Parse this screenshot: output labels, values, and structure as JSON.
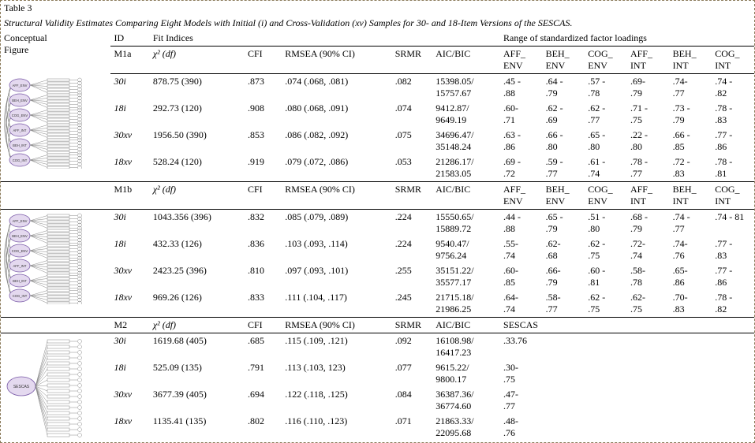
{
  "table_label": "Table 3",
  "caption": "Structural Validity Estimates Comparing Eight Models with Initial (i) and Cross-Validation (xv) Samples for 30- and 18-Item Versions of the SESCAS.",
  "cols": {
    "conceptual": "Conceptual Figure",
    "id": "ID",
    "fit": "Fit Indices",
    "range": "Range of standardized factor loadings",
    "chi": "χ² (df)",
    "cfi": "CFI",
    "rmsea": "RMSEA (90% CI)",
    "srmr": "SRMR",
    "aicbic": "AIC/BIC",
    "affenv": "AFF_ ENV",
    "behenv": "BEH_ ENV",
    "cogenv": "COG_ ENV",
    "affint": "AFF_ INT",
    "behint": "BEH_ INT",
    "cogint": "COG_ INT",
    "sescas": "SESCAS"
  },
  "models": {
    "m1a": {
      "id": "M1a",
      "figure_nodes": [
        "AFF_ENV",
        "BEH_ENV",
        "COG_ENV",
        "AFF_INT",
        "BEH_INT",
        "COG_INT"
      ],
      "rows": [
        {
          "id": "30i",
          "chi": "878.75 (390)",
          "cfi": ".873",
          "rmsea": ".074 (.068, .081)",
          "srmr": ".082",
          "aicbic": "15398.05/ 15757.67",
          "affenv": ".45 - .88",
          "behenv": ".64 - .79",
          "cogenv": ".57 - .78",
          "affint": ".69- .79",
          "behint": ".74- .77",
          "cogint": ".74 - .82"
        },
        {
          "id": "18i",
          "chi": "292.73 (120)",
          "cfi": ".908",
          "rmsea": ".080 (.068, .091)",
          "srmr": ".074",
          "aicbic": "9412.87/ 9649.19",
          "affenv": ".60- .71",
          "behenv": ".62 - .69",
          "cogenv": ".62 - .77",
          "affint": ".71 - .75",
          "behint": ".73 - .79",
          "cogint": ".78 - .83"
        },
        {
          "id": "30xv",
          "chi": "1956.50 (390)",
          "cfi": ".853",
          "rmsea": ".086 (.082, .092)",
          "srmr": ".075",
          "aicbic": "34696.47/ 35148.24",
          "affenv": ".63 - .86",
          "behenv": ".66 - .80",
          "cogenv": ".65 - .80",
          "affint": ".22 - .80",
          "behint": ".66 - .85",
          "cogint": ".77 - .86"
        },
        {
          "id": "18xv",
          "chi": "528.24 (120)",
          "cfi": ".919",
          "rmsea": ".079 (.072, .086)",
          "srmr": ".053",
          "aicbic": "21286.17/ 21583.05",
          "affenv": ".69 - .72",
          "behenv": ".59 - .77",
          "cogenv": ".61 - .74",
          "affint": ".78 - .77",
          "behint": ".72 - .83",
          "cogint": ".78 - .81"
        }
      ]
    },
    "m1b": {
      "id": "M1b",
      "figure_nodes": [
        "AFF_ENV",
        "BEH_ENV",
        "COG_ENV",
        "AFF_INT",
        "BEH_INT",
        "COG_INT"
      ],
      "rows": [
        {
          "id": "30i",
          "chi": "1043.356 (396)",
          "cfi": ".832",
          "rmsea": ".085 (.079, .089)",
          "srmr": ".224",
          "aicbic": "15550.65/ 15889.72",
          "affenv": ".44 - .88",
          "behenv": ".65 - .79",
          "cogenv": ".51 - .80",
          "affint": ".68 - .79",
          "behint": ".74 - .77",
          "cogint": ".74 - 81"
        },
        {
          "id": "18i",
          "chi": "432.33 (126)",
          "cfi": ".836",
          "rmsea": ".103 (.093, .114)",
          "srmr": ".224",
          "aicbic": "9540.47/ 9756.24",
          "affenv": ".55- .74",
          "behenv": ".62- .68",
          "cogenv": ".62 - .75",
          "affint": ".72- .74",
          "behint": ".74- .76",
          "cogint": ".77 - .83"
        },
        {
          "id": "30xv",
          "chi": "2423.25 (396)",
          "cfi": ".810",
          "rmsea": ".097 (.093, .101)",
          "srmr": ".255",
          "aicbic": "35151.22/ 35577.17",
          "affenv": ".60- .85",
          "behenv": ".66- .79",
          "cogenv": ".60 - .81",
          "affint": ".58- .78",
          "behint": ".65- .86",
          "cogint": ".77 - .86"
        },
        {
          "id": "18xv",
          "chi": "969.26 (126)",
          "cfi": ".833",
          "rmsea": ".111 (.104, .117)",
          "srmr": ".245",
          "aicbic": "21715.18/ 21986.25",
          "affenv": ".64- .74",
          "behenv": ".58- .77",
          "cogenv": ".62 - .75",
          "affint": ".62- .75",
          "behint": ".70- .83",
          "cogint": ".78 - .82"
        }
      ]
    },
    "m2": {
      "id": "M2",
      "figure_node": "SESCAS",
      "rows": [
        {
          "id": "30i",
          "chi": "1619.68 (405)",
          "cfi": ".685",
          "rmsea": ".115 (.109, .121)",
          "srmr": ".092",
          "aicbic": "16108.98/ 16417.23",
          "sescas": ".33.76"
        },
        {
          "id": "18i",
          "chi": "525.09 (135)",
          "cfi": ".791",
          "rmsea": ".113 (.103, 123)",
          "srmr": ".077",
          "aicbic": "9615.22/ 9800.17",
          "sescas": ".30-.75"
        },
        {
          "id": "30xv",
          "chi": "3677.39 (405)",
          "cfi": ".694",
          "rmsea": ".122 (.118, .125)",
          "srmr": ".084",
          "aicbic": "36387.36/ 36774.60",
          "sescas": ".47-.77"
        },
        {
          "id": "18xv",
          "chi": "1135.41 (135)",
          "cfi": ".802",
          "rmsea": ".116 (.110, .123)",
          "srmr": ".071",
          "aicbic": "21863.33/ 22095.68",
          "sescas": ".48-.76"
        }
      ]
    }
  },
  "colwidths": [
    "130",
    "46",
    "112",
    "44",
    "130",
    "48",
    "80",
    "50",
    "50",
    "50",
    "50",
    "50",
    "50"
  ],
  "colors": {
    "node_fill": "#e4d9ef",
    "node_stroke": "#7a5ba8",
    "rect_fill": "#ffffff",
    "rect_stroke": "#888888",
    "line": "#888888"
  }
}
